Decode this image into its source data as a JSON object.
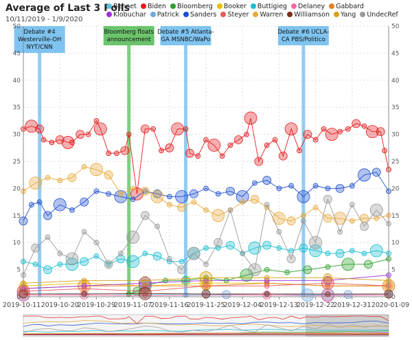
{
  "chart_data": {
    "type": "line",
    "title": "Average of Last 3 Polls",
    "subtitle": "10/11/2019 - 1/9/2020",
    "ylim": [
      0,
      50
    ],
    "y_ticks": [
      0,
      5,
      10,
      15,
      20,
      25,
      30,
      35,
      40,
      45,
      50
    ],
    "x_tick_labels": [
      "2019-10-11",
      "2019-10-20",
      "2019-10-29",
      "2019-11-07",
      "2019-11-16",
      "2019-11-25",
      "2019-12-04",
      "2019-12-13",
      "2019-12-22",
      "2019-12-31",
      "2020-01-09"
    ],
    "x_range_days": [
      0,
      90
    ],
    "grid": true,
    "events": [
      {
        "day": 4,
        "label": [
          "Debate #4",
          "Westerville-OH",
          "NYT/CNN"
        ],
        "color": "#7fc4f0"
      },
      {
        "day": 26,
        "label": [
          "Bloomberg floats",
          "announcement"
        ],
        "color": "#6cc46c"
      },
      {
        "day": 40,
        "label": [
          "Debate #5 Atlanta-",
          "GA MSNBC/WaPo"
        ],
        "color": "#7fc4f0"
      },
      {
        "day": 69,
        "label": [
          "Debate #6 UCLA-",
          "CA PBS/Politico"
        ],
        "color": "#7fc4f0"
      }
    ],
    "series": [
      {
        "name": "Bennet",
        "color": "#5bc0de",
        "x": [
          0,
          15,
          30,
          45,
          60,
          75,
          90
        ],
        "values": [
          0.5,
          0.6,
          0.4,
          0.5,
          0.5,
          0.4,
          0.5
        ]
      },
      {
        "name": "Biden",
        "color": "#e31a1c",
        "x": [
          0,
          2,
          4,
          5,
          7,
          9,
          11,
          12,
          14,
          16,
          18,
          19,
          21,
          23,
          25,
          26,
          28,
          30,
          32,
          34,
          36,
          38,
          40,
          41,
          43,
          45,
          47,
          49,
          51,
          53,
          55,
          56,
          58,
          60,
          62,
          64,
          66,
          68,
          70,
          72,
          74,
          76,
          78,
          80,
          82,
          84,
          86,
          88,
          89,
          90
        ],
        "values": [
          31,
          31.5,
          31,
          29,
          28.5,
          29,
          28.5,
          28.5,
          30,
          30,
          32.5,
          31,
          26.5,
          26.5,
          27,
          30,
          19,
          31,
          31,
          27,
          27.5,
          31,
          31,
          26.5,
          26,
          29,
          28,
          26,
          28,
          29,
          30,
          33,
          25,
          28,
          29,
          26,
          31,
          27,
          30,
          29,
          31,
          30,
          30.5,
          31,
          32,
          31.5,
          30.5,
          30.5,
          27,
          23.5
        ]
      },
      {
        "name": "Bloomberg",
        "color": "#2ca02c",
        "x": [
          26,
          28,
          30,
          35,
          40,
          45,
          50,
          55,
          60,
          65,
          70,
          75,
          80,
          85,
          90
        ],
        "values": [
          0.5,
          1,
          2,
          3,
          3,
          3.5,
          3,
          4,
          5,
          4.5,
          5,
          5.5,
          6,
          6,
          7
        ]
      },
      {
        "name": "Booker",
        "color": "#e8c100",
        "x": [
          0,
          15,
          30,
          45,
          60,
          75,
          90
        ],
        "values": [
          2,
          2.5,
          2,
          2.5,
          2.5,
          2,
          2
        ]
      },
      {
        "name": "Buttigieg",
        "color": "#17becf",
        "x": [
          0,
          3,
          6,
          9,
          12,
          15,
          18,
          21,
          24,
          27,
          30,
          33,
          36,
          39,
          42,
          45,
          48,
          51,
          54,
          57,
          60,
          63,
          66,
          69,
          72,
          75,
          78,
          81,
          84,
          87,
          90
        ],
        "values": [
          6.5,
          6,
          5,
          6,
          6,
          6.5,
          7.5,
          6,
          7,
          6.5,
          8,
          7.5,
          6.5,
          6.5,
          8,
          9,
          9,
          9.5,
          8,
          9,
          9.5,
          9,
          8.5,
          9,
          8.5,
          8,
          8,
          8.5,
          8,
          8.5,
          8
        ]
      },
      {
        "name": "Delaney",
        "color": "#ff66a3",
        "x": [
          0,
          15,
          30,
          45,
          60,
          75,
          90
        ],
        "values": [
          0.3,
          0.3,
          0.2,
          0.3,
          0.3,
          0.2,
          0.3
        ]
      },
      {
        "name": "Gabbard",
        "color": "#e67e22",
        "x": [
          0,
          15,
          30,
          45,
          60,
          75,
          90
        ],
        "values": [
          1.5,
          2,
          2,
          2,
          2.5,
          2,
          2
        ]
      },
      {
        "name": "Klobuchar",
        "color": "#9b30d9",
        "x": [
          0,
          15,
          30,
          45,
          60,
          75,
          90
        ],
        "values": [
          1.5,
          2,
          2.5,
          3,
          3,
          3,
          4
        ]
      },
      {
        "name": "Patrick",
        "color": "#6fa8dc",
        "x": [
          40,
          50,
          60,
          70,
          80,
          90
        ],
        "values": [
          0.3,
          0.4,
          0.5,
          0.3,
          0.4,
          0.5
        ]
      },
      {
        "name": "Sanders",
        "color": "#1f4fcf",
        "x": [
          0,
          2,
          4,
          6,
          9,
          12,
          15,
          18,
          21,
          24,
          27,
          30,
          33,
          36,
          39,
          42,
          45,
          48,
          51,
          54,
          57,
          60,
          63,
          66,
          69,
          72,
          75,
          78,
          81,
          84,
          87,
          90
        ],
        "values": [
          14,
          17,
          17.5,
          15,
          17,
          16,
          17.5,
          19.5,
          19,
          18.5,
          18,
          19.5,
          19,
          18.5,
          18.5,
          19,
          20,
          19,
          19.5,
          18.5,
          21,
          21.5,
          20,
          20.5,
          18.5,
          20.5,
          20,
          20,
          20.5,
          22.5,
          23,
          19.5
        ]
      },
      {
        "name": "Steyer",
        "color": "#e35a5a",
        "x": [
          0,
          15,
          30,
          45,
          60,
          75,
          90
        ],
        "values": [
          1,
          1.5,
          1,
          2,
          2,
          2.5,
          2
        ]
      },
      {
        "name": "Warren",
        "color": "#e8a93b",
        "x": [
          0,
          3,
          6,
          9,
          12,
          15,
          18,
          21,
          24,
          27,
          30,
          33,
          36,
          39,
          42,
          45,
          48,
          51,
          54,
          57,
          60,
          63,
          66,
          69,
          72,
          75,
          78,
          81,
          84,
          87,
          90
        ],
        "values": [
          19.5,
          21,
          22,
          21.5,
          22,
          24,
          23.5,
          22.5,
          19,
          20,
          19.5,
          18.5,
          17,
          16.5,
          17.5,
          16,
          15,
          16,
          17.5,
          18,
          16.5,
          14.5,
          14,
          15,
          16.5,
          14.5,
          14.5,
          14,
          14.5,
          14.5,
          15
        ]
      },
      {
        "name": "Williamson",
        "color": "#7a2e1a",
        "x": [
          0,
          15,
          30,
          45,
          60,
          75,
          90
        ],
        "values": [
          0.5,
          0.5,
          0.6,
          0.5,
          0.5,
          0.5,
          0.5
        ]
      },
      {
        "name": "Yang",
        "color": "#d4a017",
        "x": [
          0,
          15,
          30,
          45,
          60,
          75,
          90
        ],
        "values": [
          2.5,
          3,
          3,
          3.5,
          3.5,
          3.5,
          3
        ]
      },
      {
        "name": "UndecRef",
        "color": "#999999",
        "x": [
          0,
          3,
          6,
          9,
          12,
          15,
          18,
          21,
          24,
          27,
          30,
          33,
          36,
          39,
          42,
          45,
          48,
          51,
          54,
          57,
          60,
          63,
          66,
          69,
          72,
          75,
          78,
          81,
          84,
          87,
          90
        ],
        "values": [
          4,
          9,
          11,
          8,
          7,
          12,
          10,
          6,
          8,
          11,
          15,
          13,
          7,
          5,
          8,
          6,
          10,
          16,
          8,
          5,
          17,
          12,
          7,
          14,
          10,
          18,
          12,
          17,
          13,
          16,
          13.5
        ]
      }
    ]
  }
}
